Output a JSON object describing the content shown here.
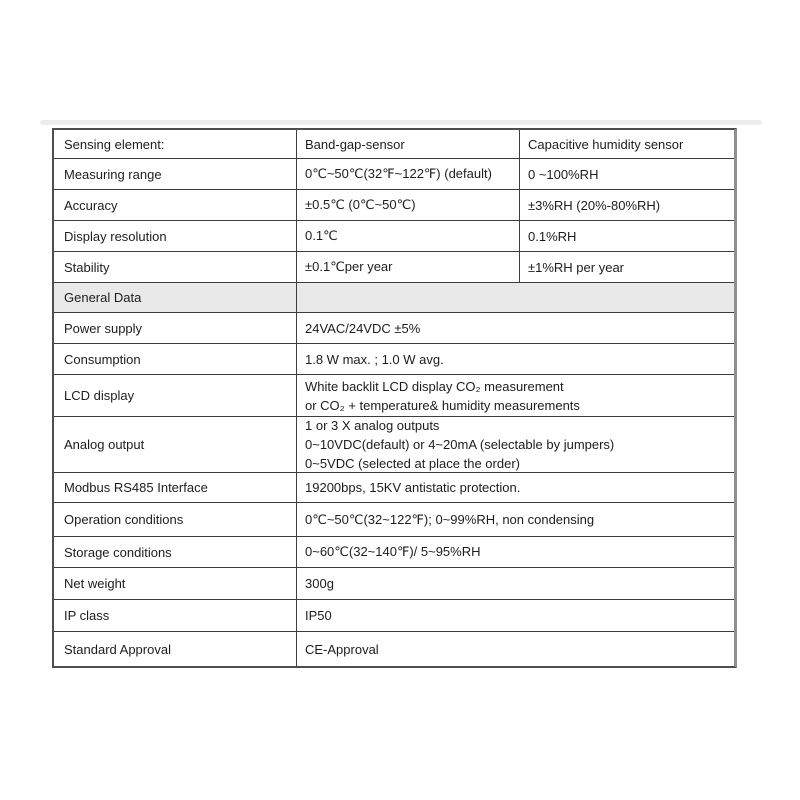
{
  "page": {
    "background": "#ffffff"
  },
  "divider_bar": {
    "color": "#ececec"
  },
  "table": {
    "border_color": "#4e4e4e",
    "inner_line_color": "#3d3d3d",
    "section_row_bg": "#e9e9e9",
    "rows": [
      {
        "label": "Sensing element:",
        "col2": "Band-gap-sensor",
        "col3": "Capacitive humidity sensor"
      },
      {
        "label": "Measuring range",
        "col2": "0℃~50℃(32℉~122℉) (default)",
        "col3": "0 ~100%RH"
      },
      {
        "label": "Accuracy",
        "col2": "±0.5℃ (0℃~50℃)",
        "col3": "±3%RH (20%-80%RH)"
      },
      {
        "label": "Display resolution",
        "col2": "0.1℃",
        "col3": "0.1%RH"
      },
      {
        "label": "Stability",
        "col2": "±0.1℃per year",
        "col3": "±1%RH per year"
      },
      {
        "label": "General Data"
      },
      {
        "label": "Power supply",
        "value": "24VAC/24VDC ±5%"
      },
      {
        "label": "Consumption",
        "value": "1.8 W max. ; 1.0 W avg."
      },
      {
        "label": "LCD display",
        "lines": [
          "White backlit LCD display CO₂ measurement",
          "or CO₂ + temperature& humidity measurements"
        ]
      },
      {
        "label": "Analog output",
        "lines": [
          "1 or 3 X analog outputs",
          "0~10VDC(default) or 4~20mA (selectable by jumpers)",
          "0~5VDC (selected at place the order)"
        ]
      },
      {
        "label": "Modbus RS485 Interface",
        "value": "19200bps, 15KV antistatic protection."
      },
      {
        "label": "Operation conditions",
        "value": "0℃~50℃(32~122℉); 0~99%RH, non condensing"
      },
      {
        "label": "Storage conditions",
        "value": "0~60℃(32~140℉)/ 5~95%RH"
      },
      {
        "label": "Net weight",
        "value": "300g"
      },
      {
        "label": "IP class",
        "value": "IP50"
      },
      {
        "label": "Standard Approval",
        "value": "CE-Approval"
      }
    ]
  }
}
